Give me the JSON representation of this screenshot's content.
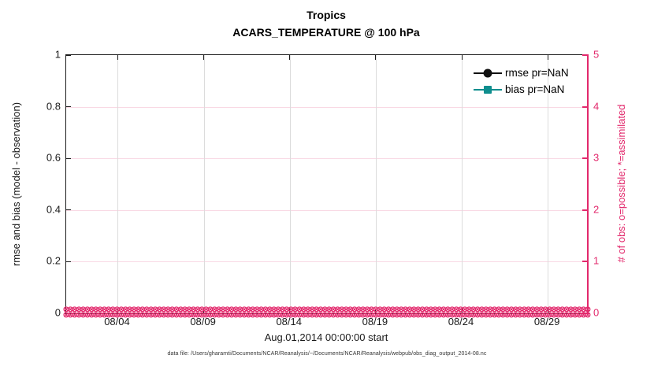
{
  "title": {
    "line1": "Tropics",
    "line2": "ACARS_TEMPERATURE @ 100 hPa"
  },
  "legend": [
    {
      "label": "rmse pr=NaN",
      "series_color": "#111111",
      "marker": "circle"
    },
    {
      "label": "bias pr=NaN",
      "series_color": "#0e8e8e",
      "marker": "square"
    }
  ],
  "footer": {
    "data_file": "data file: /Users/gharamti/Documents/NCAR/Reanalysis/~/Documents/NCAR/Reanalysis/webpub/obs_diag_output_2014-08.nc"
  },
  "colors": {
    "accent_pink": "#e2296c",
    "teal": "#0e8e8e",
    "axis_dark": "#1a1a1a",
    "grid_vertical": "#dcdcdc",
    "grid_horizontal": "#f9d9e4"
  },
  "chart_data": {
    "type": "line",
    "title": "Tropics",
    "subtitle": "ACARS_TEMPERATURE @ 100 hPa",
    "xlabel": "Aug.01,2014 00:00:00 start",
    "ylabel_left": "rmse and bias (model - observation)",
    "ylabel_right": "# of obs: o=possible; *=assimilated",
    "grid": true,
    "legend_position": "top-right-inside",
    "x_domain_days": {
      "min": 1,
      "max": 31.33
    },
    "x_ticks": [
      {
        "day": 4,
        "label": "08/04"
      },
      {
        "day": 9,
        "label": "08/09"
      },
      {
        "day": 14,
        "label": "08/14"
      },
      {
        "day": 19,
        "label": "08/19"
      },
      {
        "day": 24,
        "label": "08/24"
      },
      {
        "day": 29,
        "label": "08/29"
      }
    ],
    "left_axis": {
      "min": 0,
      "max": 1,
      "ticks": [
        {
          "v": 1,
          "label": "1"
        },
        {
          "v": 0.8,
          "label": "0.8"
        },
        {
          "v": 0.6,
          "label": "0.6"
        },
        {
          "v": 0.4,
          "label": "0.4"
        },
        {
          "v": 0.2,
          "label": "0.2"
        },
        {
          "v": 0,
          "label": "0"
        }
      ]
    },
    "right_axis": {
      "min": 0,
      "max": 5,
      "ticks": [
        {
          "v": 5,
          "label": "5"
        },
        {
          "v": 4,
          "label": "4"
        },
        {
          "v": 3,
          "label": "3"
        },
        {
          "v": 2,
          "label": "2"
        },
        {
          "v": 1,
          "label": "1"
        },
        {
          "v": 0,
          "label": "0"
        }
      ]
    },
    "series": [
      {
        "name": "rmse",
        "pr": "NaN",
        "values": null
      },
      {
        "name": "bias",
        "pr": "NaN",
        "values": null
      }
    ],
    "obs_counts": {
      "n_times": 124,
      "times_per_day": 4,
      "possible": 0,
      "assimilated": 0,
      "marker_glyph": "⊗",
      "marker_color": "#e2296c"
    }
  }
}
